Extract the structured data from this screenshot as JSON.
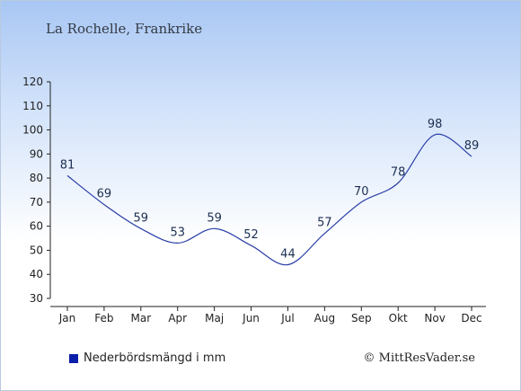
{
  "title": "La Rochelle, Frankrike",
  "legend": {
    "label": "Nederbördsmängd i mm",
    "color": "#0a1ea8"
  },
  "credit": "© MittResVader.se",
  "colors": {
    "line": "#2a3fa6",
    "axis": "#222222"
  },
  "chart_data": {
    "type": "line",
    "categories": [
      "Jan",
      "Feb",
      "Mar",
      "Apr",
      "Maj",
      "Jun",
      "Jul",
      "Aug",
      "Sep",
      "Okt",
      "Nov",
      "Dec"
    ],
    "series": [
      {
        "name": "Nederbördsmängd i mm",
        "values": [
          81,
          69,
          59,
          53,
          59,
          52,
          44,
          57,
          70,
          78,
          98,
          89
        ]
      }
    ],
    "yticks": [
      30,
      40,
      50,
      60,
      70,
      80,
      90,
      100,
      110,
      120
    ],
    "ylim": [
      30,
      120
    ],
    "data_labels": true,
    "grid": false,
    "legend_position": "bottom-left"
  }
}
